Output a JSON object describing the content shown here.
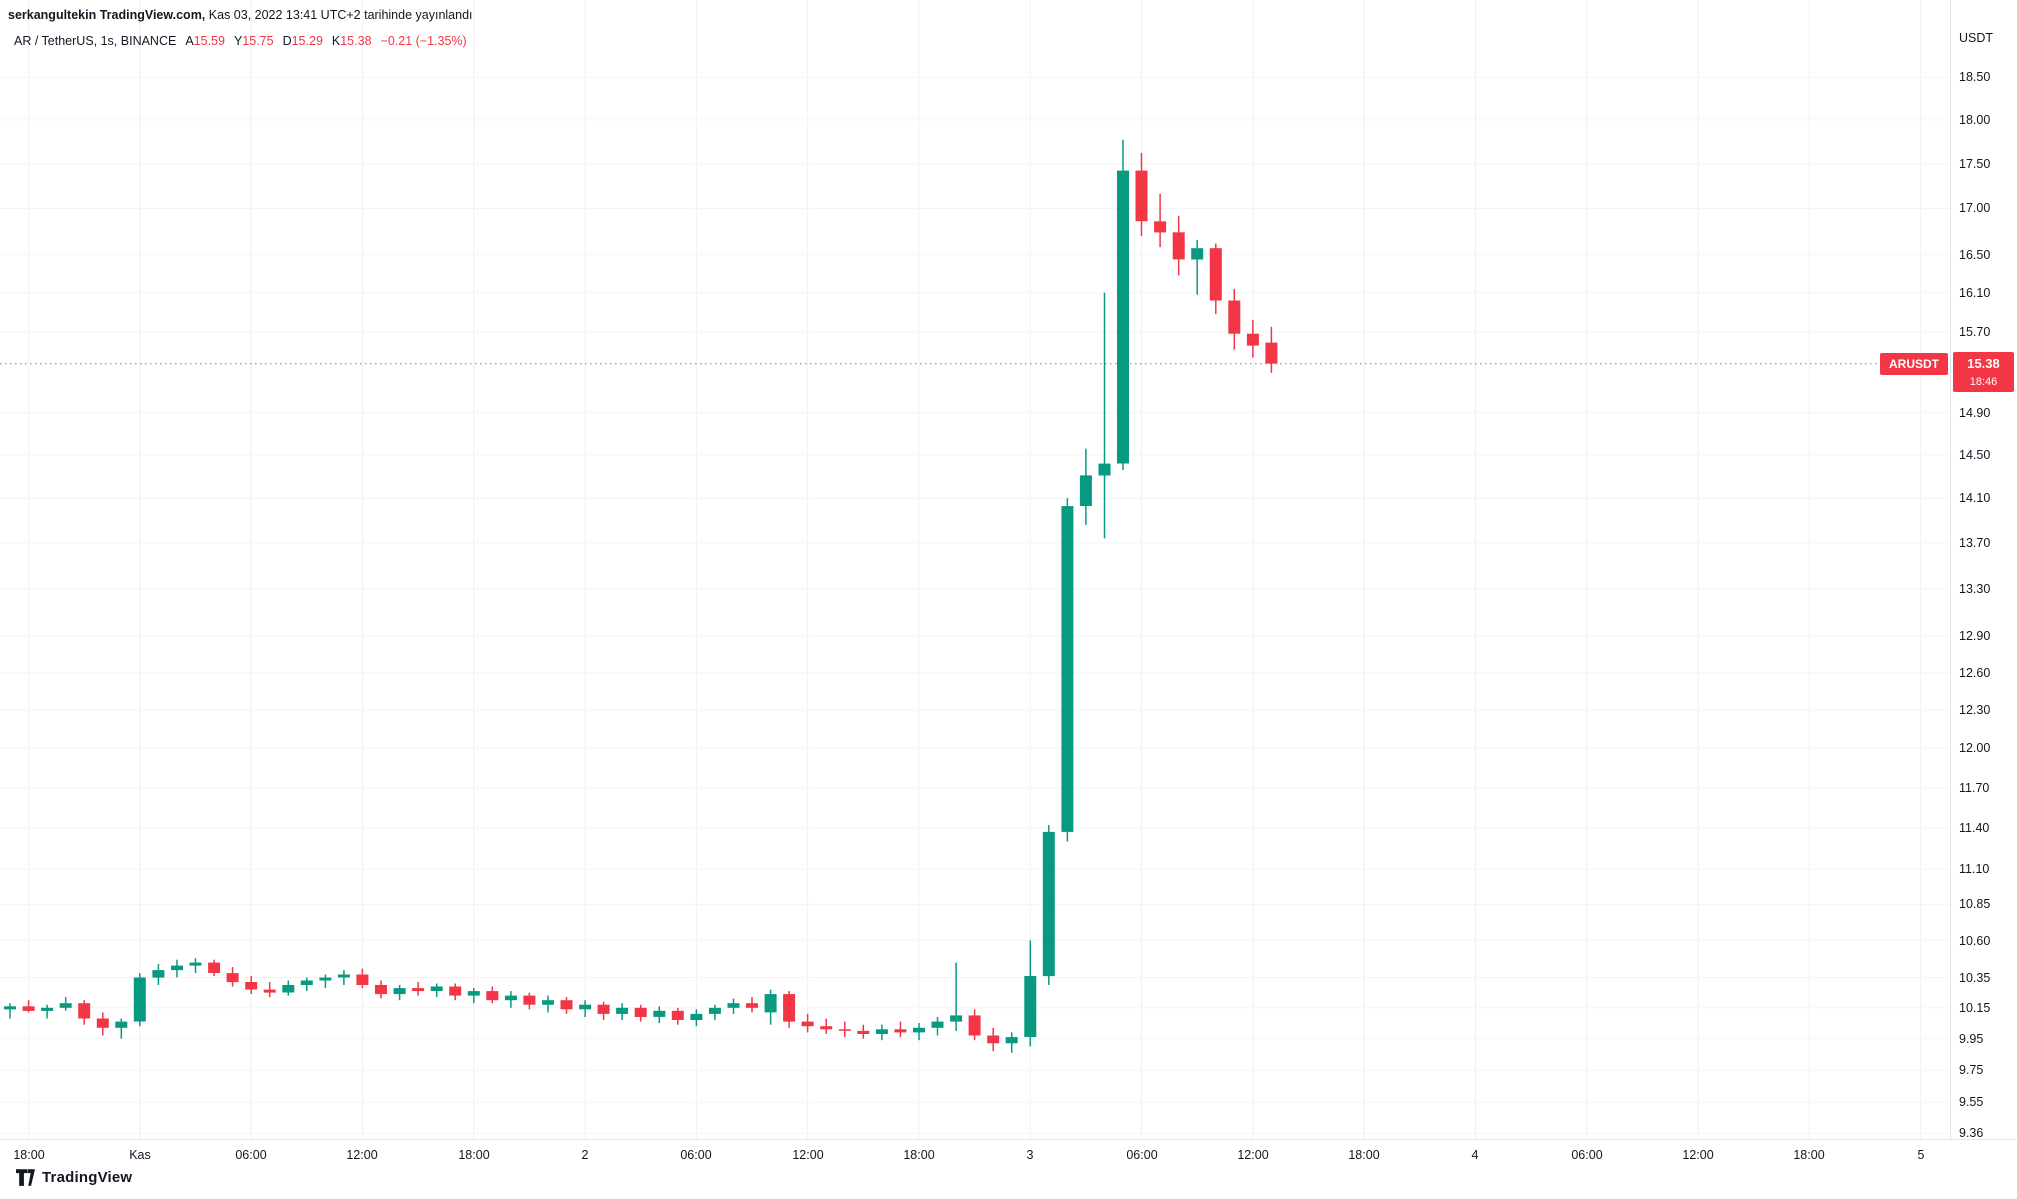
{
  "attribution": {
    "author": "serkangultekin TradingView.com,",
    "published": "Kas 03, 2022 13:41 UTC+2 tarihinde yayınlandı"
  },
  "legend": {
    "title": "AR / TetherUS, 1s, BINANCE",
    "ohlc": [
      {
        "k": "A",
        "v": "15.59"
      },
      {
        "k": "Y",
        "v": "15.75"
      },
      {
        "k": "D",
        "v": "15.29"
      },
      {
        "k": "K",
        "v": "15.38"
      }
    ],
    "change": "−0.21 (−1.35%)"
  },
  "price_axis": {
    "currency": "USDT",
    "symbol_badge": "ARUSDT",
    "last_price": "15.38",
    "countdown": "18:46",
    "ticks": [
      "18.50",
      "18.00",
      "17.50",
      "17.00",
      "16.50",
      "16.10",
      "15.70",
      "14.90",
      "14.50",
      "14.10",
      "13.70",
      "13.30",
      "12.90",
      "12.60",
      "12.30",
      "12.00",
      "11.70",
      "11.40",
      "11.10",
      "10.85",
      "10.60",
      "10.35",
      "10.15",
      "9.95",
      "9.75",
      "9.55",
      "9.36"
    ]
  },
  "time_axis": {
    "ticks": [
      {
        "i": 1,
        "label": "18:00"
      },
      {
        "i": 7,
        "label": "Kas"
      },
      {
        "i": 13,
        "label": "06:00"
      },
      {
        "i": 19,
        "label": "12:00"
      },
      {
        "i": 25,
        "label": "18:00"
      },
      {
        "i": 31,
        "label": "2"
      },
      {
        "i": 37,
        "label": "06:00"
      },
      {
        "i": 43,
        "label": "12:00"
      },
      {
        "i": 49,
        "label": "18:00"
      },
      {
        "i": 55,
        "label": "3"
      },
      {
        "i": 61,
        "label": "06:00"
      },
      {
        "i": 67,
        "label": "12:00"
      },
      {
        "i": 73,
        "label": "18:00"
      },
      {
        "i": 79,
        "label": "4"
      },
      {
        "i": 85,
        "label": "06:00"
      },
      {
        "i": 91,
        "label": "12:00"
      },
      {
        "i": 97,
        "label": "18:00"
      },
      {
        "i": 103,
        "label": "5"
      }
    ]
  },
  "logo": {
    "text": "TradingView"
  },
  "colors": {
    "up": "#089981",
    "down": "#f23645",
    "text": "#131722",
    "muted": "#787b86",
    "grid_v": "#eef0f6",
    "grid_h": "#f3f5f9",
    "axis_line": "#e0e3eb",
    "badge": "#f23645"
  },
  "chart_data": {
    "type": "candlestick",
    "title": "AR / TetherUS, 1s, BINANCE",
    "symbol": "ARUSDT",
    "exchange": "BINANCE",
    "interval_label": "1s",
    "y_scale": {
      "type": "log",
      "min": 9.32,
      "max": 18.83
    },
    "ylabel": "USDT",
    "price_line": 15.38,
    "legend_ohlc": {
      "open": 15.59,
      "high": 15.75,
      "low": 15.29,
      "close": 15.38,
      "change": -0.21,
      "change_pct": -1.35
    },
    "candles": [
      {
        "t": "10-31 17:00",
        "o": 10.14,
        "h": 10.18,
        "l": 10.08,
        "c": 10.16
      },
      {
        "t": "10-31 18:00",
        "o": 10.16,
        "h": 10.2,
        "l": 10.12,
        "c": 10.13
      },
      {
        "t": "10-31 19:00",
        "o": 10.13,
        "h": 10.17,
        "l": 10.08,
        "c": 10.15
      },
      {
        "t": "10-31 20:00",
        "o": 10.15,
        "h": 10.22,
        "l": 10.13,
        "c": 10.18
      },
      {
        "t": "10-31 21:00",
        "o": 10.18,
        "h": 10.2,
        "l": 10.04,
        "c": 10.08
      },
      {
        "t": "10-31 22:00",
        "o": 10.08,
        "h": 10.12,
        "l": 9.97,
        "c": 10.02
      },
      {
        "t": "10-31 23:00",
        "o": 10.02,
        "h": 10.08,
        "l": 9.95,
        "c": 10.06
      },
      {
        "t": "11-01 00:00",
        "o": 10.06,
        "h": 10.38,
        "l": 10.03,
        "c": 10.35
      },
      {
        "t": "11-01 01:00",
        "o": 10.35,
        "h": 10.44,
        "l": 10.3,
        "c": 10.4
      },
      {
        "t": "11-01 02:00",
        "o": 10.4,
        "h": 10.47,
        "l": 10.35,
        "c": 10.43
      },
      {
        "t": "11-01 03:00",
        "o": 10.43,
        "h": 10.48,
        "l": 10.38,
        "c": 10.45
      },
      {
        "t": "11-01 04:00",
        "o": 10.45,
        "h": 10.47,
        "l": 10.36,
        "c": 10.38
      },
      {
        "t": "11-01 05:00",
        "o": 10.38,
        "h": 10.42,
        "l": 10.29,
        "c": 10.32
      },
      {
        "t": "11-01 06:00",
        "o": 10.32,
        "h": 10.36,
        "l": 10.24,
        "c": 10.27
      },
      {
        "t": "11-01 07:00",
        "o": 10.27,
        "h": 10.32,
        "l": 10.22,
        "c": 10.25
      },
      {
        "t": "11-01 08:00",
        "o": 10.25,
        "h": 10.33,
        "l": 10.23,
        "c": 10.3
      },
      {
        "t": "11-01 09:00",
        "o": 10.3,
        "h": 10.35,
        "l": 10.26,
        "c": 10.33
      },
      {
        "t": "11-01 10:00",
        "o": 10.33,
        "h": 10.37,
        "l": 10.28,
        "c": 10.35
      },
      {
        "t": "11-01 11:00",
        "o": 10.35,
        "h": 10.4,
        "l": 10.3,
        "c": 10.37
      },
      {
        "t": "11-01 12:00",
        "o": 10.37,
        "h": 10.41,
        "l": 10.28,
        "c": 10.3
      },
      {
        "t": "11-01 13:00",
        "o": 10.3,
        "h": 10.33,
        "l": 10.21,
        "c": 10.24
      },
      {
        "t": "11-01 14:00",
        "o": 10.24,
        "h": 10.3,
        "l": 10.2,
        "c": 10.28
      },
      {
        "t": "11-01 15:00",
        "o": 10.28,
        "h": 10.32,
        "l": 10.23,
        "c": 10.26
      },
      {
        "t": "11-01 16:00",
        "o": 10.26,
        "h": 10.31,
        "l": 10.22,
        "c": 10.29
      },
      {
        "t": "11-01 17:00",
        "o": 10.29,
        "h": 10.31,
        "l": 10.2,
        "c": 10.23
      },
      {
        "t": "11-01 18:00",
        "o": 10.23,
        "h": 10.28,
        "l": 10.18,
        "c": 10.26
      },
      {
        "t": "11-01 19:00",
        "o": 10.26,
        "h": 10.29,
        "l": 10.18,
        "c": 10.2
      },
      {
        "t": "11-01 20:00",
        "o": 10.2,
        "h": 10.26,
        "l": 10.15,
        "c": 10.23
      },
      {
        "t": "11-01 21:00",
        "o": 10.23,
        "h": 10.25,
        "l": 10.14,
        "c": 10.17
      },
      {
        "t": "11-01 22:00",
        "o": 10.17,
        "h": 10.23,
        "l": 10.12,
        "c": 10.2
      },
      {
        "t": "11-01 23:00",
        "o": 10.2,
        "h": 10.22,
        "l": 10.11,
        "c": 10.14
      },
      {
        "t": "11-02 00:00",
        "o": 10.14,
        "h": 10.2,
        "l": 10.09,
        "c": 10.17
      },
      {
        "t": "11-02 01:00",
        "o": 10.17,
        "h": 10.19,
        "l": 10.07,
        "c": 10.11
      },
      {
        "t": "11-02 02:00",
        "o": 10.11,
        "h": 10.18,
        "l": 10.07,
        "c": 10.15
      },
      {
        "t": "11-02 03:00",
        "o": 10.15,
        "h": 10.17,
        "l": 10.06,
        "c": 10.09
      },
      {
        "t": "11-02 04:00",
        "o": 10.09,
        "h": 10.16,
        "l": 10.05,
        "c": 10.13
      },
      {
        "t": "11-02 05:00",
        "o": 10.13,
        "h": 10.15,
        "l": 10.04,
        "c": 10.07
      },
      {
        "t": "11-02 06:00",
        "o": 10.07,
        "h": 10.14,
        "l": 10.03,
        "c": 10.11
      },
      {
        "t": "11-02 07:00",
        "o": 10.11,
        "h": 10.17,
        "l": 10.07,
        "c": 10.15
      },
      {
        "t": "11-02 08:00",
        "o": 10.15,
        "h": 10.21,
        "l": 10.11,
        "c": 10.18
      },
      {
        "t": "11-02 09:00",
        "o": 10.18,
        "h": 10.22,
        "l": 10.12,
        "c": 10.15
      },
      {
        "t": "11-02 10:00",
        "o": 10.12,
        "h": 10.27,
        "l": 10.04,
        "c": 10.24
      },
      {
        "t": "11-02 11:00",
        "o": 10.24,
        "h": 10.26,
        "l": 10.02,
        "c": 10.06
      },
      {
        "t": "11-02 12:00",
        "o": 10.06,
        "h": 10.11,
        "l": 9.99,
        "c": 10.03
      },
      {
        "t": "11-02 13:00",
        "o": 10.03,
        "h": 10.08,
        "l": 9.98,
        "c": 10.01
      },
      {
        "t": "11-02 14:00",
        "o": 10.01,
        "h": 10.06,
        "l": 9.96,
        "c": 10.0
      },
      {
        "t": "11-02 15:00",
        "o": 10.0,
        "h": 10.04,
        "l": 9.95,
        "c": 9.98
      },
      {
        "t": "11-02 16:00",
        "o": 9.98,
        "h": 10.04,
        "l": 9.94,
        "c": 10.01
      },
      {
        "t": "11-02 17:00",
        "o": 10.01,
        "h": 10.06,
        "l": 9.96,
        "c": 9.99
      },
      {
        "t": "11-02 18:00",
        "o": 9.99,
        "h": 10.05,
        "l": 9.94,
        "c": 10.02
      },
      {
        "t": "11-02 19:00",
        "o": 10.02,
        "h": 10.09,
        "l": 9.97,
        "c": 10.06
      },
      {
        "t": "11-02 20:00",
        "o": 10.06,
        "h": 10.45,
        "l": 10.0,
        "c": 10.1
      },
      {
        "t": "11-02 21:00",
        "o": 10.1,
        "h": 10.14,
        "l": 9.94,
        "c": 9.97
      },
      {
        "t": "11-02 22:00",
        "o": 9.97,
        "h": 10.02,
        "l": 9.87,
        "c": 9.92
      },
      {
        "t": "11-02 23:00",
        "o": 9.92,
        "h": 9.99,
        "l": 9.86,
        "c": 9.96
      },
      {
        "t": "11-03 00:00",
        "o": 9.96,
        "h": 10.6,
        "l": 9.9,
        "c": 10.36
      },
      {
        "t": "11-03 01:00",
        "o": 10.36,
        "h": 11.42,
        "l": 10.3,
        "c": 11.37
      },
      {
        "t": "11-03 02:00",
        "o": 11.37,
        "h": 14.1,
        "l": 11.3,
        "c": 14.03
      },
      {
        "t": "11-03 03:00",
        "o": 14.03,
        "h": 14.56,
        "l": 13.86,
        "c": 14.31
      },
      {
        "t": "11-03 04:00",
        "o": 14.31,
        "h": 16.1,
        "l": 13.74,
        "c": 14.42
      },
      {
        "t": "11-03 05:00",
        "o": 14.42,
        "h": 17.77,
        "l": 14.36,
        "c": 17.42
      },
      {
        "t": "11-03 06:00",
        "o": 17.42,
        "h": 17.62,
        "l": 16.7,
        "c": 16.86
      },
      {
        "t": "11-03 07:00",
        "o": 16.86,
        "h": 17.16,
        "l": 16.58,
        "c": 16.74
      },
      {
        "t": "11-03 08:00",
        "o": 16.74,
        "h": 16.92,
        "l": 16.28,
        "c": 16.45
      },
      {
        "t": "11-03 09:00",
        "o": 16.45,
        "h": 16.66,
        "l": 16.08,
        "c": 16.57
      },
      {
        "t": "11-03 10:00",
        "o": 16.57,
        "h": 16.62,
        "l": 15.88,
        "c": 16.02
      },
      {
        "t": "11-03 11:00",
        "o": 16.02,
        "h": 16.14,
        "l": 15.52,
        "c": 15.68
      },
      {
        "t": "11-03 12:00",
        "o": 15.68,
        "h": 15.82,
        "l": 15.44,
        "c": 15.56
      },
      {
        "t": "11-03 13:00",
        "o": 15.59,
        "h": 15.75,
        "l": 15.29,
        "c": 15.38
      }
    ]
  }
}
